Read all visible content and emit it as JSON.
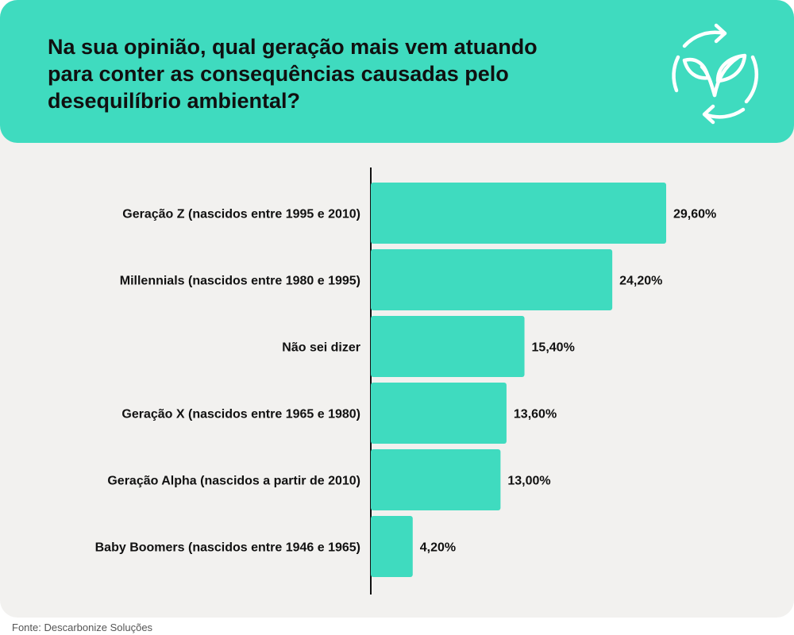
{
  "title": "Na sua opinião, qual geração mais vem atuando para conter as consequências causadas pelo desequilíbrio ambiental?",
  "source": "Fonte: Descarbonize Soluções",
  "colors": {
    "header": "#3fdbbf",
    "bar": "#3fdbbf",
    "panel": "#f2f1ef"
  },
  "icons": {
    "logo": "recycle-leaf-icon"
  },
  "chart_data": {
    "type": "bar",
    "orientation": "horizontal",
    "categories": [
      "Geração Z (nascidos entre 1995 e 2010)",
      "Millennials (nascidos entre 1980 e 1995)",
      "Não sei dizer",
      "Geração X (nascidos entre 1965 e 1980)",
      "Geração Alpha (nascidos a partir de 2010)",
      "Baby Boomers (nascidos entre 1946 e 1965)"
    ],
    "values": [
      29.6,
      24.2,
      15.4,
      13.6,
      13.0,
      4.2
    ],
    "value_labels": [
      "29,60%",
      "24,20%",
      "15,40%",
      "13,60%",
      "13,00%",
      "4,20%"
    ],
    "grid": false,
    "legend": "none"
  }
}
